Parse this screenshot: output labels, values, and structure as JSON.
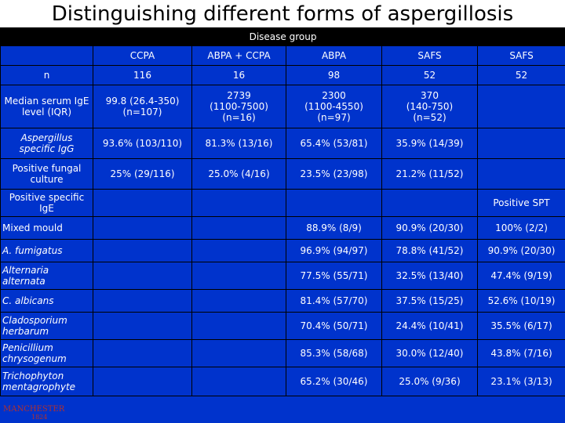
{
  "slide": {
    "title": "Distinguishing different forms of aspergillosis"
  },
  "table": {
    "group_header": "Disease group",
    "columns": [
      "CCPA",
      "ABPA + CCPA",
      "ABPA",
      "SAFS",
      "SAFS"
    ],
    "rows": {
      "n": {
        "label": "n",
        "cells": [
          "116",
          "16",
          "98",
          "52",
          "52"
        ]
      },
      "ige": {
        "label": "Median serum IgE level (IQR)",
        "cells": [
          [
            "99.8 (26.4-350)",
            "(n=107)"
          ],
          [
            "2739",
            "(1100-7500)",
            "(n=16)"
          ],
          [
            "2300",
            "(1100-4550)",
            "(n=97)"
          ],
          [
            "370",
            "(140-750)",
            "(n=52)"
          ],
          [
            ""
          ]
        ]
      },
      "igg": {
        "label": "Aspergillus specific IgG",
        "cells": [
          "93.6% (103/110)",
          "81.3% (13/16)",
          "65.4% (53/81)",
          "35.9% (14/39)",
          ""
        ]
      },
      "culture": {
        "label": "Positive fungal culture",
        "cells": [
          "25% (29/116)",
          "25.0% (4/16)",
          "23.5% (23/98)",
          "21.2% (11/52)",
          ""
        ]
      },
      "specific": {
        "label": "Positive specific IgE",
        "last": "Positive SPT"
      },
      "allergens": [
        {
          "label": "Mixed mould",
          "italic": false,
          "cells": [
            "88.9% (8/9)",
            "90.9% (20/30)",
            "100% (2/2)"
          ]
        },
        {
          "label": "A. fumigatus",
          "italic": true,
          "cells": [
            "96.9% (94/97)",
            "78.8% (41/52)",
            "90.9% (20/30)"
          ]
        },
        {
          "label": "Alternaria alternata",
          "italic": true,
          "cells": [
            "77.5% (55/71)",
            "32.5% (13/40)",
            "47.4% (9/19)"
          ]
        },
        {
          "label": "C. albicans",
          "italic": true,
          "cells": [
            "81.4% (57/70)",
            "37.5% (15/25)",
            "52.6% (10/19)"
          ]
        },
        {
          "label": "Cladosporium herbarum",
          "italic": true,
          "cells": [
            "70.4% (50/71)",
            "24.4% (10/41)",
            "35.5% (6/17)"
          ]
        },
        {
          "label": "Penicillium chrysogenum",
          "italic": true,
          "cells": [
            "85.3% (58/68)",
            "30.0% (12/40)",
            "43.8% (7/16)"
          ]
        },
        {
          "label": "Trichophyton mentagrophyte",
          "italic": true,
          "cells": [
            "65.2% (30/46)",
            "25.0% (9/36)",
            "23.1% (3/13)"
          ]
        }
      ]
    }
  },
  "logo": {
    "name": "MANCHESTER",
    "year": "1824"
  },
  "colors": {
    "background": "#0033cc",
    "title_bar": "#ffffff",
    "header_band": "#000000",
    "text": "#ffffff"
  }
}
